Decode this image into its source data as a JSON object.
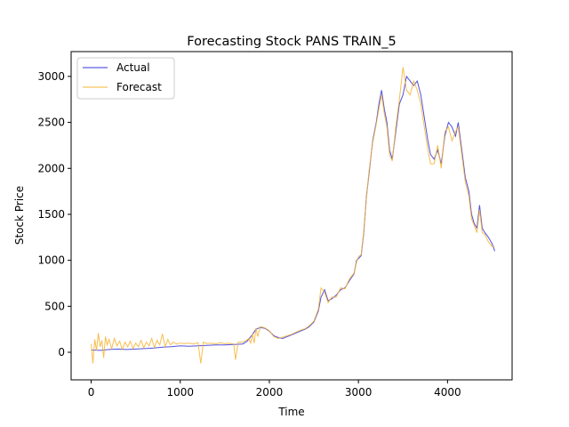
{
  "chart_data": {
    "type": "line",
    "title": "Forecasting Stock PANS TRAIN_5",
    "xlabel": "Time",
    "ylabel": "Stock Price",
    "xlim": [
      -225,
      4725
    ],
    "ylim": [
      -300,
      3270
    ],
    "xticks": [
      0,
      1000,
      2000,
      3000,
      4000
    ],
    "yticks": [
      0,
      500,
      1000,
      1500,
      2000,
      2500,
      3000
    ],
    "grid": false,
    "legend_position": "top-left",
    "series": [
      {
        "name": "Actual",
        "color": "#3333dd",
        "points": [
          [
            0,
            25
          ],
          [
            100,
            20
          ],
          [
            200,
            30
          ],
          [
            300,
            35
          ],
          [
            400,
            30
          ],
          [
            500,
            35
          ],
          [
            600,
            40
          ],
          [
            700,
            45
          ],
          [
            800,
            55
          ],
          [
            900,
            60
          ],
          [
            1000,
            70
          ],
          [
            1100,
            65
          ],
          [
            1200,
            70
          ],
          [
            1300,
            75
          ],
          [
            1400,
            80
          ],
          [
            1500,
            80
          ],
          [
            1600,
            85
          ],
          [
            1700,
            90
          ],
          [
            1750,
            120
          ],
          [
            1800,
            180
          ],
          [
            1850,
            250
          ],
          [
            1900,
            270
          ],
          [
            1950,
            260
          ],
          [
            2000,
            230
          ],
          [
            2050,
            180
          ],
          [
            2100,
            160
          ],
          [
            2150,
            150
          ],
          [
            2200,
            170
          ],
          [
            2250,
            190
          ],
          [
            2300,
            210
          ],
          [
            2350,
            230
          ],
          [
            2400,
            250
          ],
          [
            2450,
            280
          ],
          [
            2500,
            330
          ],
          [
            2550,
            450
          ],
          [
            2580,
            600
          ],
          [
            2620,
            680
          ],
          [
            2660,
            560
          ],
          [
            2700,
            580
          ],
          [
            2750,
            620
          ],
          [
            2800,
            680
          ],
          [
            2850,
            700
          ],
          [
            2900,
            780
          ],
          [
            2950,
            850
          ],
          [
            2980,
            1000
          ],
          [
            3000,
            1020
          ],
          [
            3030,
            1050
          ],
          [
            3060,
            1300
          ],
          [
            3090,
            1700
          ],
          [
            3120,
            1950
          ],
          [
            3160,
            2300
          ],
          [
            3200,
            2500
          ],
          [
            3230,
            2700
          ],
          [
            3260,
            2850
          ],
          [
            3290,
            2650
          ],
          [
            3320,
            2500
          ],
          [
            3350,
            2200
          ],
          [
            3380,
            2100
          ],
          [
            3420,
            2400
          ],
          [
            3460,
            2700
          ],
          [
            3500,
            2800
          ],
          [
            3540,
            3000
          ],
          [
            3580,
            2950
          ],
          [
            3620,
            2900
          ],
          [
            3660,
            2950
          ],
          [
            3700,
            2800
          ],
          [
            3740,
            2550
          ],
          [
            3780,
            2300
          ],
          [
            3810,
            2150
          ],
          [
            3850,
            2100
          ],
          [
            3890,
            2200
          ],
          [
            3930,
            2050
          ],
          [
            3970,
            2350
          ],
          [
            4010,
            2500
          ],
          [
            4050,
            2450
          ],
          [
            4090,
            2350
          ],
          [
            4120,
            2500
          ],
          [
            4160,
            2200
          ],
          [
            4200,
            1900
          ],
          [
            4240,
            1750
          ],
          [
            4270,
            1500
          ],
          [
            4300,
            1400
          ],
          [
            4330,
            1350
          ],
          [
            4360,
            1600
          ],
          [
            4390,
            1350
          ],
          [
            4420,
            1300
          ],
          [
            4460,
            1250
          ],
          [
            4500,
            1180
          ],
          [
            4530,
            1100
          ]
        ]
      },
      {
        "name": "Forecast",
        "color": "#f5b330",
        "points": [
          [
            0,
            90
          ],
          [
            20,
            -120
          ],
          [
            40,
            140
          ],
          [
            60,
            20
          ],
          [
            80,
            210
          ],
          [
            100,
            60
          ],
          [
            120,
            130
          ],
          [
            140,
            -60
          ],
          [
            160,
            170
          ],
          [
            180,
            80
          ],
          [
            200,
            140
          ],
          [
            230,
            40
          ],
          [
            260,
            150
          ],
          [
            290,
            70
          ],
          [
            320,
            120
          ],
          [
            350,
            30
          ],
          [
            380,
            110
          ],
          [
            410,
            60
          ],
          [
            440,
            120
          ],
          [
            470,
            40
          ],
          [
            500,
            100
          ],
          [
            530,
            60
          ],
          [
            560,
            130
          ],
          [
            590,
            50
          ],
          [
            620,
            110
          ],
          [
            650,
            70
          ],
          [
            680,
            150
          ],
          [
            710,
            50
          ],
          [
            740,
            130
          ],
          [
            770,
            80
          ],
          [
            800,
            200
          ],
          [
            830,
            60
          ],
          [
            860,
            140
          ],
          [
            890,
            80
          ],
          [
            920,
            110
          ],
          [
            960,
            90
          ],
          [
            1000,
            100
          ],
          [
            1050,
            95
          ],
          [
            1100,
            100
          ],
          [
            1150,
            90
          ],
          [
            1200,
            105
          ],
          [
            1230,
            -120
          ],
          [
            1260,
            110
          ],
          [
            1300,
            95
          ],
          [
            1350,
            100
          ],
          [
            1400,
            90
          ],
          [
            1450,
            105
          ],
          [
            1500,
            95
          ],
          [
            1550,
            100
          ],
          [
            1600,
            90
          ],
          [
            1620,
            -80
          ],
          [
            1650,
            110
          ],
          [
            1700,
            110
          ],
          [
            1740,
            130
          ],
          [
            1770,
            150
          ],
          [
            1790,
            100
          ],
          [
            1810,
            200
          ],
          [
            1830,
            100
          ],
          [
            1850,
            260
          ],
          [
            1870,
            170
          ],
          [
            1900,
            280
          ],
          [
            1950,
            265
          ],
          [
            2000,
            235
          ],
          [
            2050,
            170
          ],
          [
            2100,
            150
          ],
          [
            2150,
            165
          ],
          [
            2200,
            180
          ],
          [
            2250,
            195
          ],
          [
            2300,
            220
          ],
          [
            2350,
            240
          ],
          [
            2400,
            255
          ],
          [
            2450,
            290
          ],
          [
            2500,
            340
          ],
          [
            2550,
            470
          ],
          [
            2580,
            700
          ],
          [
            2620,
            650
          ],
          [
            2660,
            540
          ],
          [
            2700,
            600
          ],
          [
            2750,
            600
          ],
          [
            2800,
            700
          ],
          [
            2850,
            690
          ],
          [
            2900,
            800
          ],
          [
            2950,
            860
          ],
          [
            2980,
            980
          ],
          [
            3000,
            1040
          ],
          [
            3030,
            1060
          ],
          [
            3060,
            1320
          ],
          [
            3090,
            1680
          ],
          [
            3120,
            1980
          ],
          [
            3160,
            2280
          ],
          [
            3200,
            2480
          ],
          [
            3230,
            2650
          ],
          [
            3260,
            2800
          ],
          [
            3290,
            2600
          ],
          [
            3320,
            2450
          ],
          [
            3350,
            2150
          ],
          [
            3380,
            2080
          ],
          [
            3420,
            2450
          ],
          [
            3460,
            2750
          ],
          [
            3500,
            3100
          ],
          [
            3540,
            2850
          ],
          [
            3580,
            2800
          ],
          [
            3620,
            2950
          ],
          [
            3660,
            2850
          ],
          [
            3700,
            2700
          ],
          [
            3740,
            2450
          ],
          [
            3780,
            2200
          ],
          [
            3810,
            2050
          ],
          [
            3850,
            2050
          ],
          [
            3890,
            2250
          ],
          [
            3930,
            2000
          ],
          [
            3970,
            2400
          ],
          [
            4010,
            2450
          ],
          [
            4050,
            2300
          ],
          [
            4090,
            2400
          ],
          [
            4120,
            2450
          ],
          [
            4160,
            2150
          ],
          [
            4200,
            1850
          ],
          [
            4240,
            1700
          ],
          [
            4270,
            1450
          ],
          [
            4300,
            1380
          ],
          [
            4330,
            1300
          ],
          [
            4360,
            1550
          ],
          [
            4390,
            1300
          ],
          [
            4420,
            1280
          ],
          [
            4460,
            1200
          ],
          [
            4500,
            1150
          ],
          [
            4530,
            1150
          ]
        ]
      }
    ]
  }
}
